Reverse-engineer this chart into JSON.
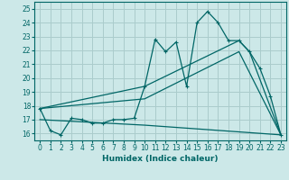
{
  "xlabel": "Humidex (Indice chaleur)",
  "bg_color": "#cce8e8",
  "grid_color": "#aacccc",
  "line_color": "#006666",
  "xlim": [
    -0.5,
    23.5
  ],
  "ylim": [
    15.5,
    25.5
  ],
  "xticks": [
    0,
    1,
    2,
    3,
    4,
    5,
    6,
    7,
    8,
    9,
    10,
    11,
    12,
    13,
    14,
    15,
    16,
    17,
    18,
    19,
    20,
    21,
    22,
    23
  ],
  "yticks": [
    16,
    17,
    18,
    19,
    20,
    21,
    22,
    23,
    24,
    25
  ],
  "series": [
    [
      0,
      17.8
    ],
    [
      1,
      16.2
    ],
    [
      2,
      15.9
    ],
    [
      3,
      17.1
    ],
    [
      4,
      17.0
    ],
    [
      5,
      16.75
    ],
    [
      6,
      16.75
    ],
    [
      7,
      17.0
    ],
    [
      8,
      17.0
    ],
    [
      9,
      17.1
    ],
    [
      10,
      19.4
    ],
    [
      11,
      22.8
    ],
    [
      12,
      21.9
    ],
    [
      13,
      22.6
    ],
    [
      14,
      19.4
    ],
    [
      15,
      24.0
    ],
    [
      16,
      24.8
    ],
    [
      17,
      24.0
    ],
    [
      18,
      22.7
    ],
    [
      19,
      22.7
    ],
    [
      20,
      21.9
    ],
    [
      21,
      20.7
    ],
    [
      22,
      18.7
    ],
    [
      23,
      15.9
    ]
  ],
  "line2": [
    [
      0,
      17.8
    ],
    [
      10,
      19.4
    ],
    [
      19,
      22.7
    ],
    [
      20,
      21.9
    ],
    [
      23,
      15.9
    ]
  ],
  "line3": [
    [
      0,
      17.8
    ],
    [
      10,
      18.5
    ],
    [
      19,
      21.9
    ],
    [
      23,
      15.9
    ]
  ],
  "line4": [
    [
      0,
      17.0
    ],
    [
      10,
      16.6
    ],
    [
      23,
      15.9
    ]
  ]
}
